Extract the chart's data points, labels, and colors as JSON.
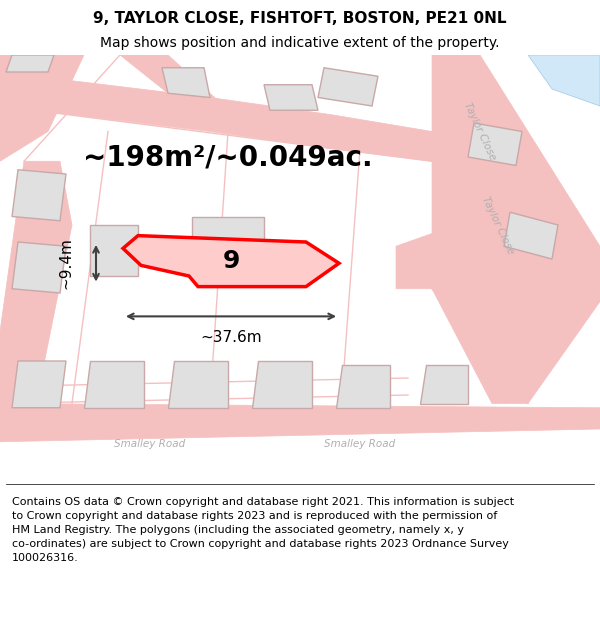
{
  "title_line1": "9, TAYLOR CLOSE, FISHTOFT, BOSTON, PE21 0NL",
  "title_line2": "Map shows position and indicative extent of the property.",
  "area_label": "~198m²/~0.049ac.",
  "width_label": "~37.6m",
  "height_label": "~9.4m",
  "plot_number": "9",
  "footer_wrapped": "Contains OS data © Crown copyright and database right 2021. This information is subject\nto Crown copyright and database rights 2023 and is reproduced with the permission of\nHM Land Registry. The polygons (including the associated geometry, namely x, y\nco-ordinates) are subject to Crown copyright and database rights 2023 Ordnance Survey\n100026316.",
  "map_bg": "#f0eeee",
  "road_color": "#f5c0c0",
  "road_fill": "#f5c0c0",
  "building_fill": "#e0e0e0",
  "building_edge": "#c8a8a8",
  "highlight_color": "#ff0000",
  "highlight_fill": "#ffcccc",
  "street_label_color": "#b0b0b0",
  "dim_line_color": "#404040",
  "water_fill": "#d0e8f8",
  "water_edge": "#a0c8e8",
  "title_fontsize": 11,
  "subtitle_fontsize": 10,
  "area_fontsize": 20,
  "dim_fontsize": 11,
  "plot_num_fontsize": 18,
  "footer_fontsize": 8,
  "street_fontsize": 7.5
}
